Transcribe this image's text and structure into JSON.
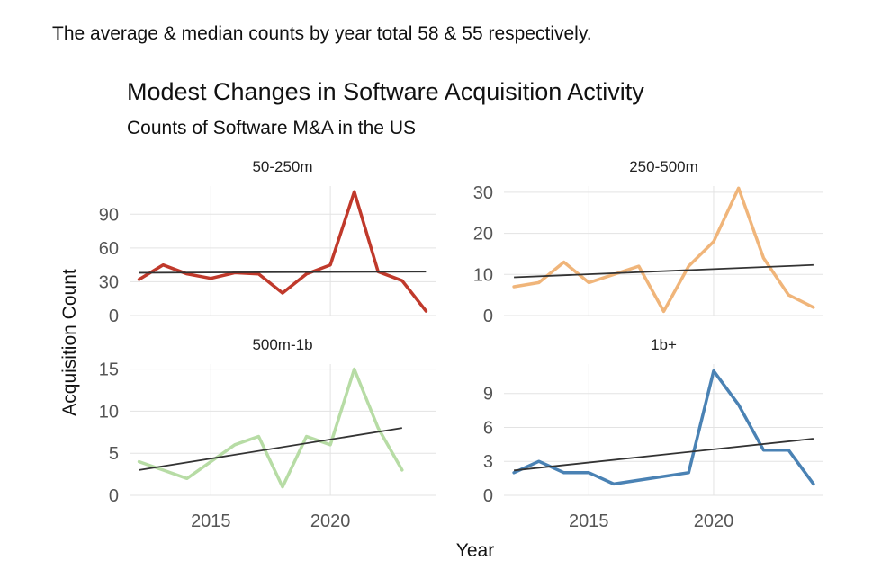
{
  "caption": "The average & median counts by year total 58 & 55 respectively.",
  "chart_data": {
    "type": "line",
    "title": "Modest Changes in Software Acquisition Activity",
    "subtitle": "Counts of Software M&A in the US",
    "xlabel": "Year",
    "ylabel": "Acquisition Count",
    "x_ticks": [
      2015,
      2020
    ],
    "xlim": [
      2011.6,
      2024.4
    ],
    "grid": true,
    "panels": [
      {
        "name": "50-250m",
        "color": "#c0392b",
        "x": [
          2012,
          2013,
          2014,
          2015,
          2016,
          2017,
          2018,
          2019,
          2020,
          2021,
          2022,
          2023,
          2024
        ],
        "values": [
          32,
          45,
          37,
          33,
          38,
          37,
          20,
          37,
          45,
          110,
          39,
          31,
          4
        ],
        "trend": [
          38,
          39
        ],
        "ylim": [
          0,
          115
        ],
        "y_ticks": [
          0,
          30,
          60,
          90
        ]
      },
      {
        "name": "250-500m",
        "color": "#f0b57a",
        "x": [
          2012,
          2013,
          2014,
          2015,
          2016,
          2017,
          2018,
          2019,
          2020,
          2021,
          2022,
          2023,
          2024
        ],
        "values": [
          7,
          8,
          13,
          8,
          10,
          12,
          1,
          12,
          18,
          31,
          14,
          5,
          2
        ],
        "trend": [
          9.3,
          12.3
        ],
        "ylim": [
          0,
          31.5
        ],
        "y_ticks": [
          0,
          10,
          20,
          30
        ]
      },
      {
        "name": "500m-1b",
        "color": "#b7dca5",
        "x": [
          2012,
          2013,
          2014,
          2015,
          2016,
          2017,
          2018,
          2019,
          2020,
          2021,
          2022,
          2023
        ],
        "values": [
          4,
          3,
          2,
          4,
          6,
          7,
          1,
          7,
          6,
          15,
          8,
          3
        ],
        "trend": [
          3,
          8
        ],
        "ylim": [
          0,
          15.6
        ],
        "y_ticks": [
          0,
          5,
          10,
          15
        ]
      },
      {
        "name": "1b+",
        "color": "#4a82b4",
        "x": [
          2012,
          2013,
          2014,
          2015,
          2016,
          2019,
          2020,
          2021,
          2022,
          2023,
          2024
        ],
        "values": [
          2,
          3,
          2,
          2,
          1,
          2,
          11,
          8,
          4,
          4,
          1
        ],
        "trend": [
          2.2,
          5
        ],
        "ylim": [
          0,
          11.6
        ],
        "y_ticks": [
          0,
          3,
          6,
          9
        ]
      }
    ]
  }
}
